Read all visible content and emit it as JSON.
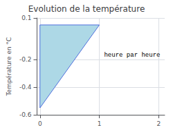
{
  "chart_data": {
    "type": "polygon",
    "title": "Evolution de la température",
    "ylabel": "Température en °C",
    "x": [
      0,
      0,
      1
    ],
    "values": [
      0.05,
      -0.55,
      0.05
    ],
    "color": "#add8e6",
    "xlim": [
      -0.05,
      2.1
    ],
    "xticks": [
      0,
      1,
      2
    ],
    "ylim": [
      -0.6,
      0.1
    ],
    "yticks": [
      0.1,
      -0.2,
      -0.4,
      -0.6
    ],
    "grid": true,
    "annotations": [
      {
        "text": "heure par heure",
        "x": 1.08,
        "y": -0.17
      }
    ]
  }
}
